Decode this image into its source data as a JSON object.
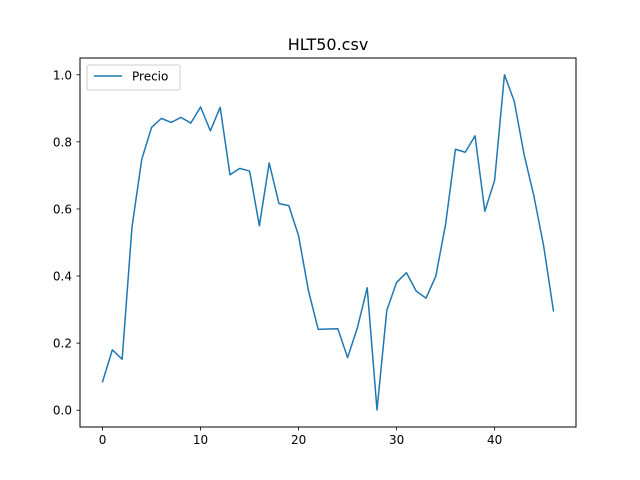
{
  "chart_data": {
    "type": "line",
    "title": "HLT50.csv",
    "xlabel": "",
    "ylabel": "",
    "xlim": [
      -2.3,
      48.3
    ],
    "ylim": [
      -0.05,
      1.05
    ],
    "xticks": [
      0,
      10,
      20,
      30,
      40
    ],
    "xtick_labels": [
      "0",
      "10",
      "20",
      "30",
      "40"
    ],
    "yticks": [
      0.0,
      0.2,
      0.4,
      0.6,
      0.8,
      1.0
    ],
    "ytick_labels": [
      "0.0",
      "0.2",
      "0.4",
      "0.6",
      "0.8",
      "1.0"
    ],
    "grid": false,
    "legend_position": "top-left",
    "series": [
      {
        "name": "Precio",
        "color": "#1f77b4",
        "x": [
          0,
          1,
          2,
          3,
          4,
          5,
          6,
          7,
          8,
          9,
          10,
          11,
          12,
          13,
          14,
          15,
          16,
          17,
          18,
          19,
          20,
          21,
          22,
          23,
          24,
          25,
          26,
          27,
          28,
          29,
          30,
          31,
          32,
          33,
          34,
          35,
          36,
          37,
          38,
          39,
          40,
          41,
          42,
          43,
          44,
          45,
          46
        ],
        "values": [
          0.085,
          0.18,
          0.152,
          0.545,
          0.748,
          0.843,
          0.87,
          0.858,
          0.873,
          0.856,
          0.904,
          0.833,
          0.903,
          0.702,
          0.721,
          0.713,
          0.55,
          0.737,
          0.616,
          0.61,
          0.52,
          0.357,
          0.241,
          0.242,
          0.243,
          0.157,
          0.246,
          0.365,
          0.001,
          0.298,
          0.381,
          0.41,
          0.355,
          0.334,
          0.4,
          0.555,
          0.778,
          0.769,
          0.818,
          0.593,
          0.686,
          1.0,
          0.921,
          0.763,
          0.639,
          0.49,
          0.296
        ]
      }
    ]
  }
}
